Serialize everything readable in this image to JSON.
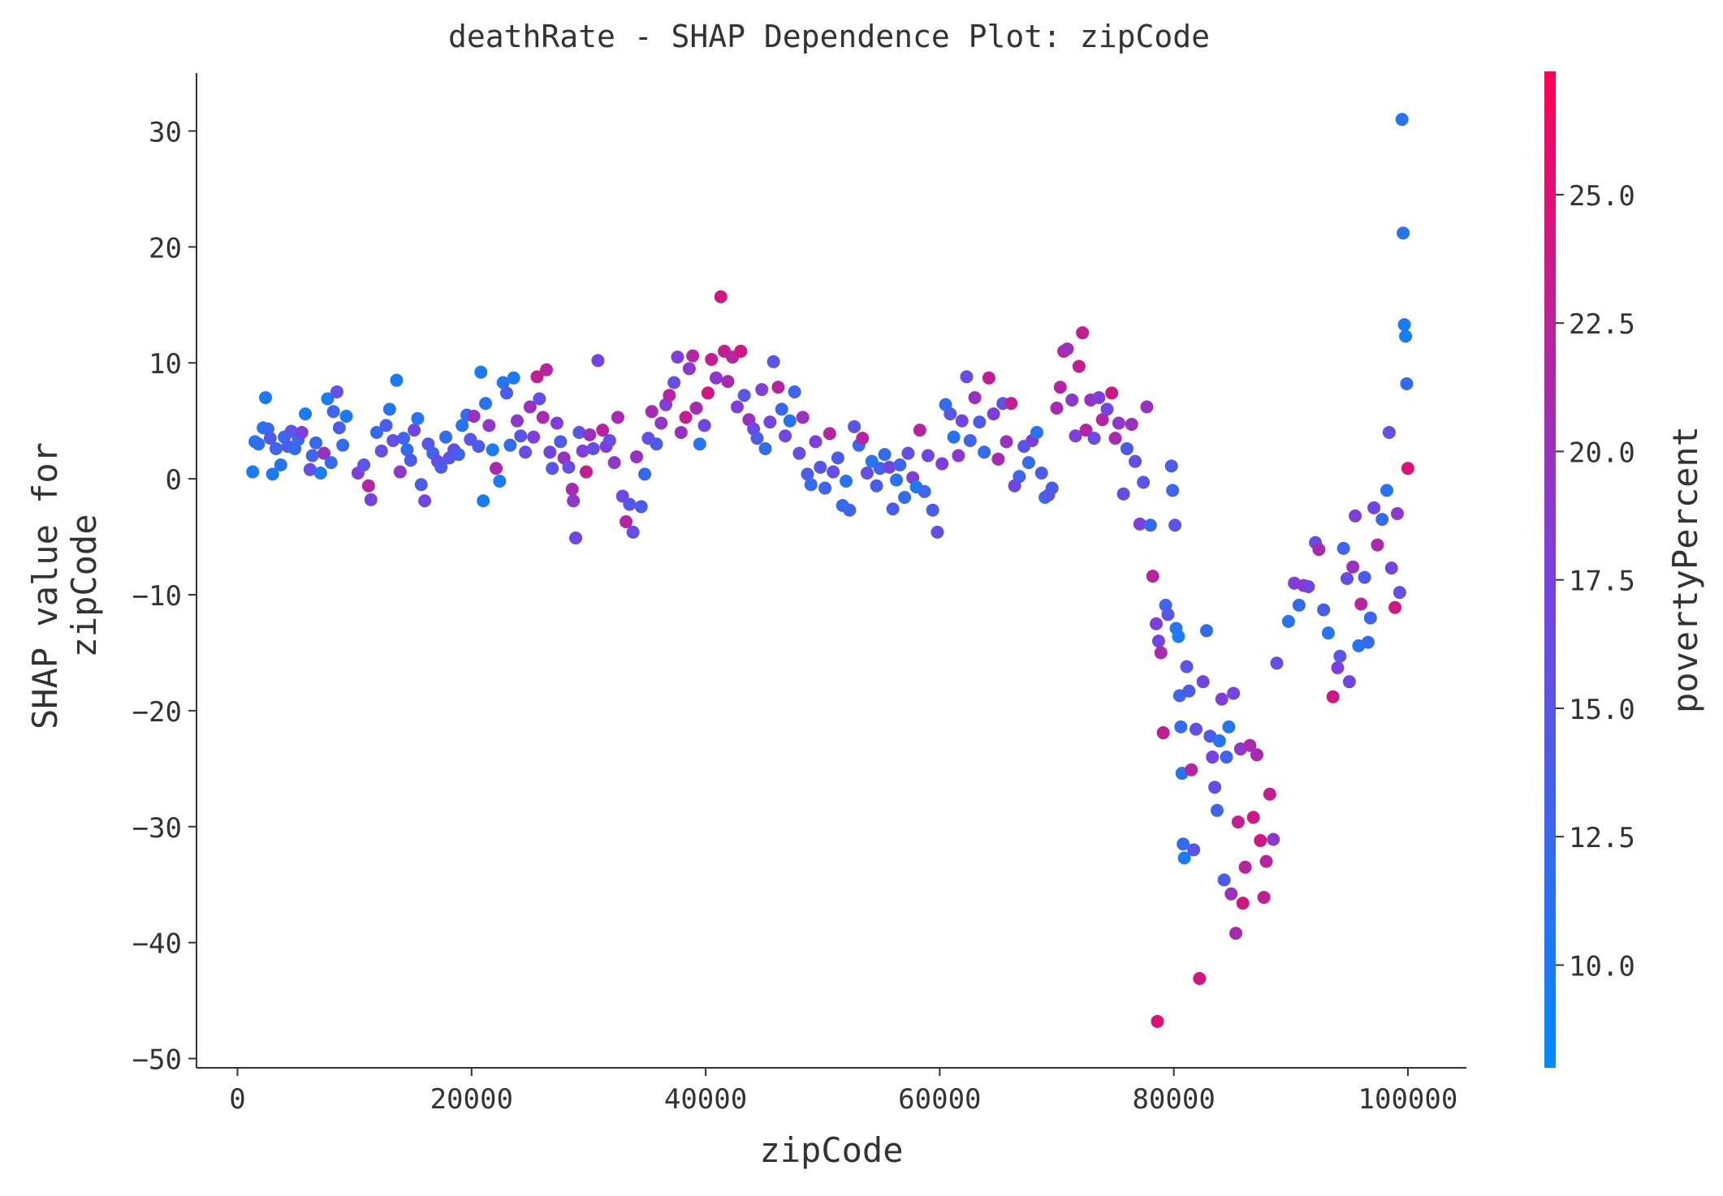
{
  "chart_data": {
    "type": "scatter",
    "title": "deathRate - SHAP Dependence Plot: zipCode",
    "xlabel": "zipCode",
    "ylabel_lines": [
      "SHAP value for",
      "zipCode"
    ],
    "xlim": [
      -3500,
      105000
    ],
    "ylim": [
      -50.8,
      35
    ],
    "xticks": [
      0,
      20000,
      40000,
      60000,
      80000,
      100000
    ],
    "xtick_labels": [
      "0",
      "20000",
      "40000",
      "60000",
      "80000",
      "100000"
    ],
    "yticks": [
      30,
      20,
      10,
      0,
      -10,
      -20,
      -30,
      -40,
      -50
    ],
    "ytick_labels": [
      "30",
      "20",
      "10",
      "0",
      "−10",
      "−20",
      "−30",
      "−40",
      "−50"
    ],
    "colorbar": {
      "label": "povertyPercent",
      "range": [
        8.0,
        27.4
      ],
      "ticks": [
        10.0,
        12.5,
        15.0,
        17.5,
        20.0,
        22.5,
        25.0
      ],
      "tick_labels": [
        "10.0",
        "12.5",
        "15.0",
        "17.5",
        "20.0",
        "22.5",
        "25.0"
      ],
      "colors": [
        "#008afb",
        "#7b40e0",
        "#ff0052"
      ]
    },
    "grid": false,
    "points": [
      [
        1300,
        0.6,
        10
      ],
      [
        1500,
        3.2,
        11
      ],
      [
        1800,
        3.0,
        12
      ],
      [
        2200,
        4.4,
        11
      ],
      [
        2400,
        7.0,
        10
      ],
      [
        2600,
        4.3,
        12
      ],
      [
        2800,
        3.5,
        14
      ],
      [
        3000,
        0.4,
        10
      ],
      [
        3300,
        2.6,
        13
      ],
      [
        3700,
        1.2,
        11
      ],
      [
        4000,
        3.6,
        12
      ],
      [
        4300,
        2.8,
        14
      ],
      [
        4600,
        4.1,
        15
      ],
      [
        4900,
        2.6,
        12
      ],
      [
        5200,
        3.4,
        13
      ],
      [
        5500,
        4.0,
        18
      ],
      [
        5800,
        5.6,
        10
      ],
      [
        6200,
        0.8,
        16
      ],
      [
        6400,
        2.0,
        13
      ],
      [
        6700,
        3.1,
        12
      ],
      [
        7100,
        0.5,
        10
      ],
      [
        7400,
        2.2,
        20
      ],
      [
        7700,
        6.9,
        10
      ],
      [
        8000,
        1.4,
        12
      ],
      [
        8200,
        5.8,
        13
      ],
      [
        8500,
        7.5,
        16
      ],
      [
        8700,
        4.4,
        14
      ],
      [
        9000,
        2.9,
        12
      ],
      [
        9300,
        5.4,
        10
      ],
      [
        10300,
        0.5,
        18
      ],
      [
        10800,
        1.2,
        15
      ],
      [
        11200,
        -0.6,
        22
      ],
      [
        11400,
        -1.8,
        17
      ],
      [
        11900,
        4.0,
        12
      ],
      [
        12300,
        2.4,
        16
      ],
      [
        12700,
        4.6,
        14
      ],
      [
        13000,
        6.0,
        11
      ],
      [
        13300,
        3.3,
        16
      ],
      [
        13600,
        8.5,
        10
      ],
      [
        13900,
        0.6,
        19
      ],
      [
        14200,
        3.5,
        13
      ],
      [
        14500,
        2.5,
        12
      ],
      [
        14800,
        1.6,
        14
      ],
      [
        15100,
        4.2,
        17
      ],
      [
        15400,
        5.2,
        11
      ],
      [
        15700,
        -0.5,
        14
      ],
      [
        16000,
        -1.9,
        17
      ],
      [
        16300,
        3.0,
        15
      ],
      [
        16700,
        2.2,
        13
      ],
      [
        17100,
        1.5,
        16
      ],
      [
        17400,
        1.0,
        14
      ],
      [
        17800,
        3.6,
        12
      ],
      [
        18100,
        1.8,
        15
      ],
      [
        18500,
        2.5,
        16
      ],
      [
        18900,
        2.1,
        13
      ],
      [
        19200,
        4.6,
        11
      ],
      [
        19600,
        5.5,
        12
      ],
      [
        19900,
        3.4,
        15
      ],
      [
        20200,
        5.4,
        20
      ],
      [
        20600,
        2.8,
        14
      ],
      [
        20800,
        9.2,
        10
      ],
      [
        21000,
        -1.9,
        10
      ],
      [
        21200,
        6.5,
        11
      ],
      [
        21500,
        4.6,
        19
      ],
      [
        21800,
        2.5,
        10
      ],
      [
        22100,
        0.9,
        21
      ],
      [
        22400,
        -0.2,
        10
      ],
      [
        22700,
        8.3,
        11
      ],
      [
        23000,
        7.4,
        14
      ],
      [
        23300,
        2.9,
        12
      ],
      [
        23600,
        8.7,
        10
      ],
      [
        23900,
        5.0,
        19
      ],
      [
        24200,
        3.7,
        15
      ],
      [
        24600,
        2.3,
        16
      ],
      [
        25000,
        6.2,
        20
      ],
      [
        25300,
        3.6,
        18
      ],
      [
        25600,
        8.8,
        23
      ],
      [
        25800,
        6.9,
        16
      ],
      [
        26100,
        5.3,
        21
      ],
      [
        26400,
        9.4,
        22
      ],
      [
        26700,
        2.3,
        17
      ],
      [
        26900,
        0.9,
        15
      ],
      [
        27300,
        4.8,
        18
      ],
      [
        27600,
        3.2,
        14
      ],
      [
        27900,
        1.8,
        20
      ],
      [
        28300,
        1.0,
        16
      ],
      [
        28600,
        -0.9,
        21
      ],
      [
        28700,
        -1.9,
        19
      ],
      [
        28900,
        -5.1,
        17
      ],
      [
        29200,
        4.0,
        15
      ],
      [
        29500,
        2.4,
        18
      ],
      [
        29800,
        0.6,
        23
      ],
      [
        30100,
        3.8,
        20
      ],
      [
        30400,
        2.6,
        16
      ],
      [
        30800,
        10.2,
        17
      ],
      [
        31200,
        4.2,
        22
      ],
      [
        31500,
        2.8,
        18
      ],
      [
        31800,
        3.3,
        16
      ],
      [
        32200,
        1.4,
        19
      ],
      [
        32500,
        5.3,
        21
      ],
      [
        32900,
        -1.5,
        17
      ],
      [
        33200,
        -3.7,
        22
      ],
      [
        33500,
        -2.2,
        15
      ],
      [
        33800,
        -4.6,
        16
      ],
      [
        34100,
        1.9,
        20
      ],
      [
        34500,
        -2.4,
        14
      ],
      [
        34800,
        0.4,
        12
      ],
      [
        35100,
        3.5,
        16
      ],
      [
        35400,
        5.8,
        21
      ],
      [
        35800,
        3.0,
        14
      ],
      [
        36200,
        4.8,
        19
      ],
      [
        36600,
        6.4,
        18
      ],
      [
        36900,
        7.2,
        22
      ],
      [
        37300,
        8.3,
        16
      ],
      [
        37600,
        10.5,
        18
      ],
      [
        37900,
        4.0,
        20
      ],
      [
        38300,
        5.3,
        23
      ],
      [
        38600,
        9.5,
        19
      ],
      [
        38900,
        10.6,
        22
      ],
      [
        39200,
        6.1,
        21
      ],
      [
        39500,
        3.0,
        11
      ],
      [
        39900,
        4.6,
        17
      ],
      [
        40200,
        7.4,
        24
      ],
      [
        40500,
        10.3,
        23
      ],
      [
        40900,
        8.7,
        19
      ],
      [
        41300,
        15.7,
        24
      ],
      [
        41600,
        11.0,
        23
      ],
      [
        41900,
        8.4,
        21
      ],
      [
        42300,
        10.5,
        22
      ],
      [
        42700,
        6.2,
        18
      ],
      [
        43000,
        11.0,
        24
      ],
      [
        43300,
        7.2,
        15
      ],
      [
        43700,
        5.1,
        20
      ],
      [
        44100,
        4.3,
        16
      ],
      [
        44400,
        3.5,
        14
      ],
      [
        44800,
        7.7,
        18
      ],
      [
        45100,
        2.6,
        12
      ],
      [
        45500,
        4.9,
        17
      ],
      [
        45800,
        10.1,
        15
      ],
      [
        46200,
        7.9,
        22
      ],
      [
        46500,
        6.0,
        13
      ],
      [
        46800,
        3.7,
        17
      ],
      [
        47200,
        5.0,
        11
      ],
      [
        47600,
        7.5,
        13
      ],
      [
        48000,
        2.2,
        16
      ],
      [
        48300,
        5.3,
        20
      ],
      [
        48700,
        0.4,
        14
      ],
      [
        49000,
        -0.5,
        12
      ],
      [
        49400,
        3.2,
        18
      ],
      [
        49800,
        1.0,
        15
      ],
      [
        50200,
        -0.8,
        13
      ],
      [
        50600,
        3.9,
        22
      ],
      [
        50900,
        0.6,
        16
      ],
      [
        51300,
        1.8,
        14
      ],
      [
        51700,
        -2.3,
        12
      ],
      [
        52000,
        -0.2,
        11
      ],
      [
        52300,
        -2.7,
        13
      ],
      [
        52700,
        4.5,
        15
      ],
      [
        53100,
        2.9,
        13
      ],
      [
        53400,
        3.5,
        22
      ],
      [
        53800,
        0.5,
        16
      ],
      [
        54200,
        1.5,
        11
      ],
      [
        54600,
        -0.6,
        14
      ],
      [
        54900,
        0.9,
        13
      ],
      [
        55300,
        2.1,
        12
      ],
      [
        55700,
        1.0,
        17
      ],
      [
        56000,
        -2.6,
        14
      ],
      [
        56300,
        -0.1,
        11
      ],
      [
        56600,
        1.2,
        13
      ],
      [
        57000,
        -1.6,
        12
      ],
      [
        57300,
        2.2,
        16
      ],
      [
        57700,
        0.1,
        18
      ],
      [
        58000,
        -0.7,
        10
      ],
      [
        58300,
        4.2,
        22
      ],
      [
        58700,
        -1.1,
        13
      ],
      [
        59000,
        2.0,
        17
      ],
      [
        59400,
        -2.7,
        14
      ],
      [
        59800,
        -4.6,
        16
      ],
      [
        60200,
        1.3,
        18
      ],
      [
        60500,
        6.4,
        12
      ],
      [
        60900,
        5.6,
        15
      ],
      [
        61200,
        3.6,
        11
      ],
      [
        61600,
        2.0,
        19
      ],
      [
        61900,
        5.0,
        17
      ],
      [
        62300,
        8.8,
        16
      ],
      [
        62600,
        3.3,
        13
      ],
      [
        63000,
        7.0,
        20
      ],
      [
        63400,
        4.9,
        14
      ],
      [
        63800,
        2.3,
        12
      ],
      [
        64200,
        8.7,
        23
      ],
      [
        64600,
        5.6,
        18
      ],
      [
        65000,
        1.7,
        21
      ],
      [
        65400,
        6.5,
        15
      ],
      [
        65700,
        3.2,
        20
      ],
      [
        66100,
        6.5,
        23
      ],
      [
        66400,
        -0.6,
        17
      ],
      [
        66800,
        0.2,
        13
      ],
      [
        67200,
        2.8,
        15
      ],
      [
        67600,
        1.4,
        12
      ],
      [
        67900,
        3.3,
        18
      ],
      [
        68300,
        4.0,
        11
      ],
      [
        68700,
        0.5,
        14
      ],
      [
        69000,
        -1.6,
        12
      ],
      [
        69300,
        -1.4,
        15
      ],
      [
        69600,
        -0.8,
        14
      ],
      [
        70000,
        6.1,
        21
      ],
      [
        70300,
        7.9,
        22
      ],
      [
        70600,
        11.0,
        22
      ],
      [
        70900,
        11.2,
        20
      ],
      [
        71300,
        6.8,
        19
      ],
      [
        71600,
        3.7,
        18
      ],
      [
        71900,
        9.7,
        23
      ],
      [
        72200,
        12.6,
        23
      ],
      [
        72500,
        4.2,
        22
      ],
      [
        72900,
        6.8,
        20
      ],
      [
        73200,
        3.5,
        16
      ],
      [
        73600,
        7.0,
        18
      ],
      [
        73900,
        5.1,
        22
      ],
      [
        74300,
        6.0,
        17
      ],
      [
        74700,
        7.4,
        24
      ],
      [
        75000,
        3.5,
        21
      ],
      [
        75300,
        4.8,
        19
      ],
      [
        75700,
        -1.3,
        16
      ],
      [
        76000,
        2.6,
        14
      ],
      [
        76400,
        4.7,
        20
      ],
      [
        76700,
        1.5,
        16
      ],
      [
        77100,
        -3.9,
        18
      ],
      [
        77400,
        -0.3,
        15
      ],
      [
        77700,
        6.2,
        20
      ],
      [
        78000,
        -4.0,
        12
      ],
      [
        78200,
        -8.4,
        22
      ],
      [
        78500,
        -12.5,
        18
      ],
      [
        78600,
        -46.8,
        25
      ],
      [
        78700,
        -14.0,
        17
      ],
      [
        78900,
        -15.0,
        21
      ],
      [
        79100,
        -21.9,
        23
      ],
      [
        79300,
        -10.9,
        13
      ],
      [
        79500,
        -11.7,
        15
      ],
      [
        79800,
        1.1,
        14
      ],
      [
        79900,
        -1.0,
        13
      ],
      [
        80100,
        -4.0,
        15
      ],
      [
        80200,
        -12.9,
        11
      ],
      [
        80400,
        -13.6,
        10
      ],
      [
        80500,
        -18.7,
        13
      ],
      [
        80600,
        -21.4,
        12
      ],
      [
        80700,
        -25.4,
        11
      ],
      [
        80800,
        -31.5,
        12
      ],
      [
        80900,
        -32.7,
        10
      ],
      [
        81100,
        -16.2,
        15
      ],
      [
        81300,
        -18.3,
        14
      ],
      [
        81500,
        -25.1,
        22
      ],
      [
        81700,
        -32.0,
        15
      ],
      [
        81900,
        -21.6,
        16
      ],
      [
        82200,
        -43.1,
        24
      ],
      [
        82500,
        -17.5,
        17
      ],
      [
        82800,
        -13.1,
        12
      ],
      [
        83100,
        -22.2,
        14
      ],
      [
        83300,
        -24.0,
        17
      ],
      [
        83500,
        -26.6,
        16
      ],
      [
        83700,
        -28.6,
        13
      ],
      [
        83900,
        -22.6,
        11
      ],
      [
        84100,
        -19.0,
        18
      ],
      [
        84300,
        -34.6,
        14
      ],
      [
        84500,
        -24.0,
        13
      ],
      [
        84700,
        -21.4,
        11
      ],
      [
        84900,
        -35.8,
        20
      ],
      [
        85100,
        -18.5,
        17
      ],
      [
        85300,
        -39.2,
        21
      ],
      [
        85500,
        -29.6,
        23
      ],
      [
        85700,
        -23.3,
        19
      ],
      [
        85900,
        -36.6,
        24
      ],
      [
        86100,
        -33.5,
        22
      ],
      [
        86500,
        -23.0,
        21
      ],
      [
        86800,
        -29.2,
        24
      ],
      [
        87100,
        -23.8,
        21
      ],
      [
        87400,
        -31.2,
        24
      ],
      [
        87700,
        -36.1,
        23
      ],
      [
        87900,
        -33.0,
        22
      ],
      [
        88200,
        -27.2,
        23
      ],
      [
        88500,
        -31.1,
        19
      ],
      [
        88800,
        -15.9,
        16
      ],
      [
        89800,
        -12.3,
        11
      ],
      [
        90300,
        -9.0,
        18
      ],
      [
        90700,
        -10.9,
        12
      ],
      [
        91100,
        -9.2,
        19
      ],
      [
        91500,
        -9.3,
        17
      ],
      [
        92100,
        -5.5,
        16
      ],
      [
        92400,
        -6.1,
        21
      ],
      [
        92800,
        -11.3,
        14
      ],
      [
        93200,
        -13.3,
        11
      ],
      [
        93600,
        -18.8,
        24
      ],
      [
        94000,
        -16.3,
        18
      ],
      [
        94200,
        -15.3,
        15
      ],
      [
        94500,
        -6.0,
        13
      ],
      [
        94800,
        -8.6,
        16
      ],
      [
        95000,
        -17.5,
        17
      ],
      [
        95300,
        -7.6,
        20
      ],
      [
        95500,
        -3.2,
        18
      ],
      [
        95800,
        -14.4,
        11
      ],
      [
        96000,
        -10.8,
        22
      ],
      [
        96300,
        -8.5,
        14
      ],
      [
        96600,
        -14.1,
        12
      ],
      [
        96800,
        -12.0,
        13
      ],
      [
        97100,
        -2.5,
        17
      ],
      [
        97400,
        -5.7,
        21
      ],
      [
        97800,
        -3.5,
        12
      ],
      [
        98200,
        -1.0,
        11
      ],
      [
        98400,
        4.0,
        16
      ],
      [
        98600,
        -7.7,
        17
      ],
      [
        98900,
        -11.1,
        24
      ],
      [
        99100,
        -3.0,
        19
      ],
      [
        99300,
        -9.8,
        16
      ],
      [
        99500,
        31.0,
        11
      ],
      [
        99600,
        21.2,
        11
      ],
      [
        99700,
        13.3,
        10
      ],
      [
        99800,
        12.3,
        10
      ],
      [
        99900,
        8.2,
        12
      ],
      [
        100000,
        0.9,
        25
      ]
    ]
  }
}
